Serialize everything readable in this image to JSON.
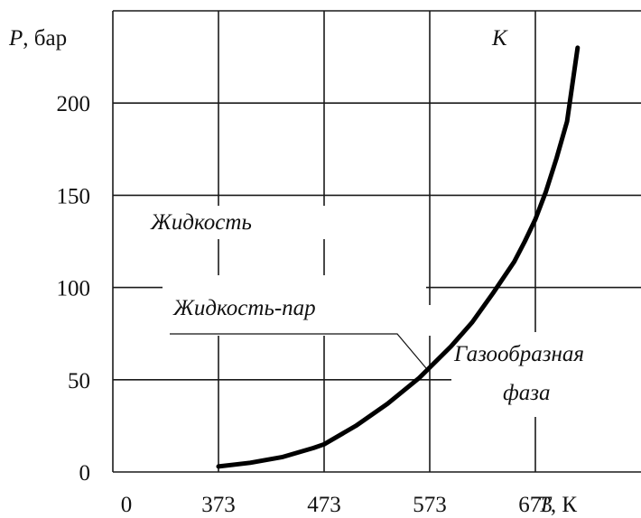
{
  "chart_data": {
    "type": "line",
    "ylabel": {
      "var": "P",
      "unit": ", бар"
    },
    "xlabel": {
      "var": "T",
      "unit": ", К"
    },
    "x_ticks": [
      "0",
      "373",
      "473",
      "573",
      "673"
    ],
    "y_ticks": [
      "0",
      "50",
      "100",
      "150",
      "200"
    ],
    "xlim": [
      273,
      773
    ],
    "ylim": [
      0,
      250
    ],
    "grid": true,
    "series": [
      {
        "x": [
          373,
          403,
          433,
          463,
          473,
          503,
          533,
          563,
          593,
          613,
          633,
          653,
          663,
          673,
          683,
          693,
          703,
          713
        ],
        "values": [
          3,
          5,
          8,
          13,
          15,
          25,
          37,
          51,
          68,
          81,
          97,
          114,
          125,
          137,
          152,
          170,
          190,
          230
        ]
      }
    ],
    "annotations": {
      "critical_point": "К",
      "liquid": "Жидкость",
      "equilibrium": "Жидкость-пар",
      "gas_line1": "Газообразная",
      "gas_line2": "фаза"
    }
  }
}
